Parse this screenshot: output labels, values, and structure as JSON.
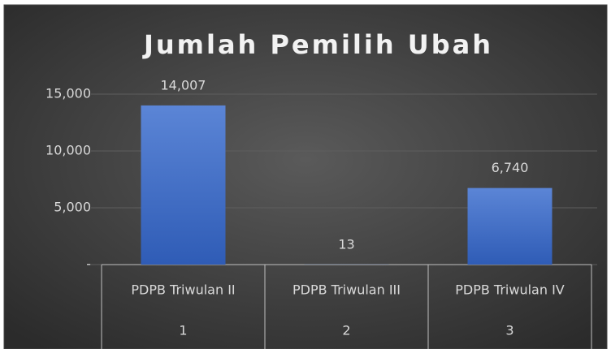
{
  "chart_data": {
    "type": "bar",
    "title": "Jumlah Pemilih Ubah",
    "categories": [
      "PDPB Triwulan II",
      "PDPB Triwulan III",
      "PDPB Triwulan IV"
    ],
    "category_groups": [
      "1",
      "2",
      "3"
    ],
    "values": [
      14007,
      13,
      6740
    ],
    "value_labels": [
      "14,007",
      "13",
      "6,740"
    ],
    "color": "#4472c4",
    "ylim": [
      0,
      15000
    ],
    "yticks": [
      {
        "value": 0,
        "label": "-"
      },
      {
        "value": 5000,
        "label": "5,000"
      },
      {
        "value": 10000,
        "label": "10,000"
      },
      {
        "value": 15000,
        "label": "15,000"
      }
    ],
    "grid": true
  }
}
